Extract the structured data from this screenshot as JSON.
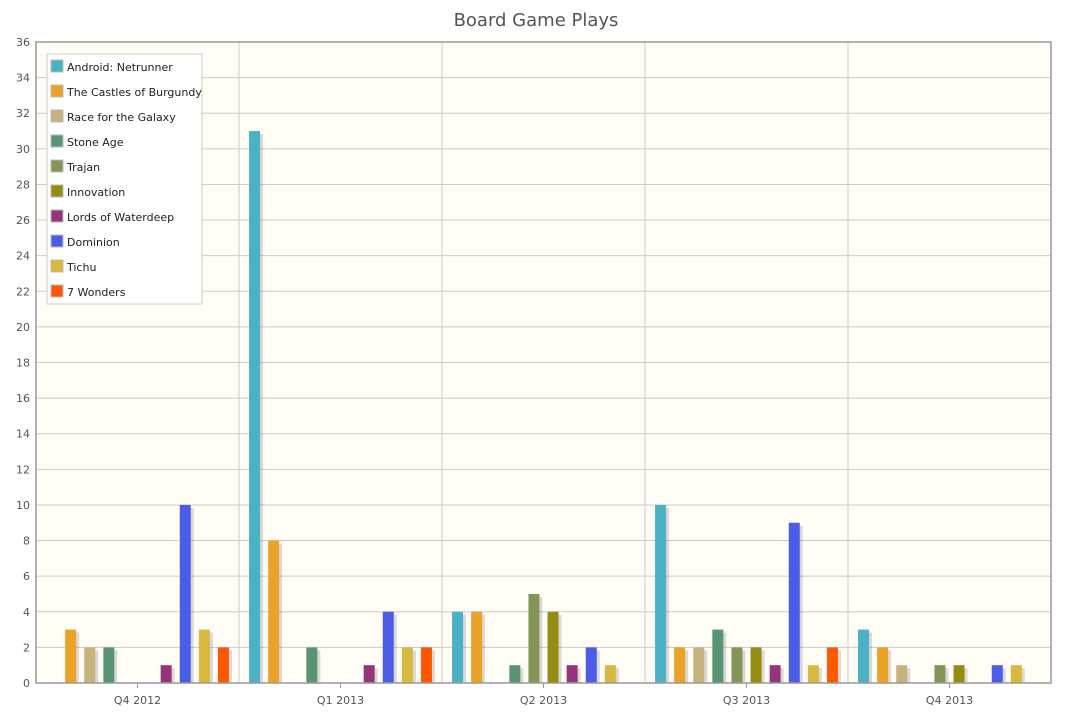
{
  "chart_data": {
    "type": "bar",
    "title": "Board Game Plays",
    "xlabel": "",
    "ylabel": "",
    "ylim": [
      0,
      36
    ],
    "y_ticks": [
      0,
      2,
      4,
      6,
      8,
      10,
      12,
      14,
      16,
      18,
      20,
      22,
      24,
      26,
      28,
      30,
      32,
      34,
      36
    ],
    "grid": true,
    "legend_position": "top-left",
    "categories": [
      "Q4 2012",
      "Q1 2013",
      "Q2 2013",
      "Q3 2013",
      "Q4 2013"
    ],
    "series": [
      {
        "name": "Android: Netrunner",
        "color": "#4bb2c5",
        "values": [
          0,
          31,
          4,
          10,
          3
        ]
      },
      {
        "name": "The Castles of Burgundy",
        "color": "#eaa228",
        "values": [
          3,
          8,
          4,
          2,
          2
        ]
      },
      {
        "name": "Race for the Galaxy",
        "color": "#c5b47f",
        "values": [
          2,
          0,
          0,
          2,
          1
        ]
      },
      {
        "name": "Stone Age",
        "color": "#579575",
        "values": [
          2,
          2,
          1,
          3,
          0
        ]
      },
      {
        "name": "Trajan",
        "color": "#839557",
        "values": [
          0,
          0,
          5,
          2,
          1
        ]
      },
      {
        "name": "Innovation",
        "color": "#958c12",
        "values": [
          0,
          0,
          4,
          2,
          1
        ]
      },
      {
        "name": "Lords of Waterdeep",
        "color": "#953579",
        "values": [
          1,
          1,
          1,
          1,
          0
        ]
      },
      {
        "name": "Dominion",
        "color": "#4b5de4",
        "values": [
          10,
          4,
          2,
          9,
          1
        ]
      },
      {
        "name": "Tichu",
        "color": "#d8b83f",
        "values": [
          3,
          2,
          1,
          1,
          1
        ]
      },
      {
        "name": "7 Wonders",
        "color": "#ff5800",
        "values": [
          2,
          2,
          0,
          2,
          0
        ]
      }
    ]
  }
}
